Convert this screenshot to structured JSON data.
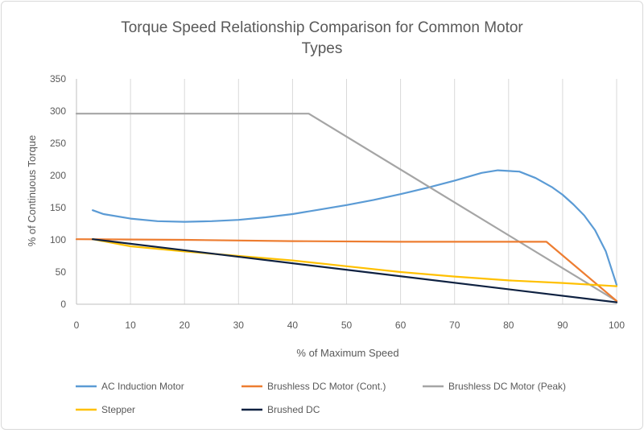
{
  "chart_data": {
    "type": "line",
    "title_lines": [
      "Torque Speed Relationship Comparison for Common Motor",
      "Types"
    ],
    "xlabel": "% of Maximum Speed",
    "ylabel": "% of Continuous Torque",
    "xlim": [
      0,
      100
    ],
    "ylim": [
      0,
      350
    ],
    "xticks": [
      0,
      10,
      20,
      30,
      40,
      50,
      60,
      70,
      80,
      90,
      100
    ],
    "yticks": [
      0,
      50,
      100,
      150,
      200,
      250,
      300,
      350
    ],
    "grid": "vertical",
    "legend_position": "bottom",
    "series": [
      {
        "name": "AC Induction Motor",
        "color": "#5b9bd5",
        "x": [
          3,
          5,
          10,
          15,
          20,
          25,
          30,
          35,
          40,
          45,
          50,
          55,
          60,
          65,
          70,
          75,
          78,
          82,
          85,
          88,
          90,
          92,
          94,
          96,
          98,
          100
        ],
        "y": [
          146,
          140,
          133,
          129,
          128,
          129,
          131,
          135,
          140,
          147,
          154,
          162,
          171,
          181,
          192,
          204,
          208,
          206,
          196,
          182,
          170,
          155,
          138,
          115,
          82,
          30
        ]
      },
      {
        "name": "Brushless DC Motor (Cont.)",
        "color": "#ed7d31",
        "x": [
          0,
          20,
          40,
          60,
          87,
          100
        ],
        "y": [
          101,
          100,
          98,
          97,
          97,
          5
        ]
      },
      {
        "name": "Brushless DC Motor (Peak)",
        "color": "#a5a5a5",
        "x": [
          0,
          43,
          100
        ],
        "y": [
          296,
          296,
          5
        ]
      },
      {
        "name": "Stepper",
        "color": "#ffc000",
        "x": [
          3,
          10,
          20,
          30,
          40,
          50,
          60,
          70,
          80,
          90,
          100
        ],
        "y": [
          101,
          90,
          82,
          75,
          68,
          59,
          50,
          43,
          37,
          33,
          28
        ]
      },
      {
        "name": "Brushed DC",
        "color": "#0e2141",
        "x": [
          3,
          100
        ],
        "y": [
          101,
          3
        ]
      }
    ]
  }
}
